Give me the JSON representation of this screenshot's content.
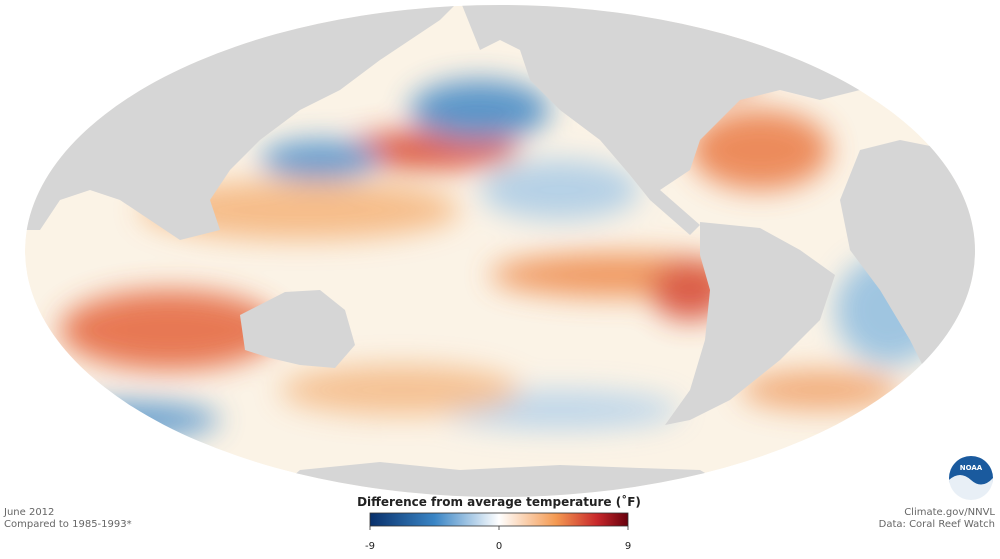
{
  "date": "June 2012",
  "baseline": "Compared to 1985-1993*",
  "credit": "Climate.gov/NNVL",
  "source": "Data: Coral Reef Watch",
  "logo": "NOAA",
  "legend": {
    "title": "Difference from average temperature (˚F)",
    "lim": [
      -9,
      9
    ],
    "ticks": [
      -9,
      0,
      9
    ]
  }
}
